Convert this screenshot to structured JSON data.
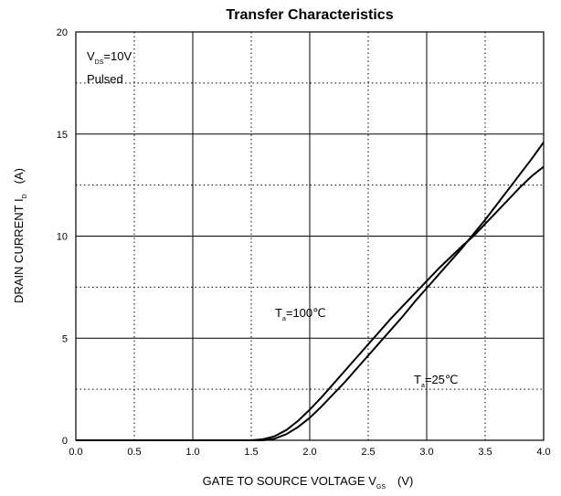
{
  "chart_data": {
    "type": "line",
    "title": "Transfer Characteristics",
    "xlabel": {
      "main": "GATE TO SOURCE VOLTAGE   V",
      "sub": "GS",
      "unit": "(V)"
    },
    "ylabel": {
      "main": "DRAIN CURRENT   I",
      "sub": "D",
      "unit": "(A)"
    },
    "xlim": [
      0,
      4
    ],
    "ylim": [
      0,
      20
    ],
    "x_ticks": [
      "0.0",
      "0.5",
      "1.0",
      "1.5",
      "2.0",
      "2.5",
      "3.0",
      "3.5",
      "4.0"
    ],
    "y_ticks": [
      "0",
      "5",
      "10",
      "15",
      "20"
    ],
    "grid": {
      "major": "solid",
      "minor": "dotted"
    },
    "conditions": {
      "line1": {
        "main": "V",
        "sub": "DS",
        "rest": "=10V"
      },
      "line2": "Pulsed"
    },
    "series": [
      {
        "label": {
          "main": "T",
          "sub": "a",
          "rest": "=100℃"
        },
        "x": [
          0.0,
          1.5,
          1.6,
          1.7,
          1.8,
          1.9,
          2.0,
          2.1,
          2.2,
          2.3,
          2.4,
          2.5,
          2.6,
          2.7,
          2.8,
          2.9,
          3.0,
          3.1,
          3.2,
          3.3,
          3.4,
          3.5,
          3.6,
          3.7,
          3.8,
          3.9,
          4.0
        ],
        "y": [
          0.0,
          0.0,
          0.05,
          0.2,
          0.5,
          0.95,
          1.5,
          2.1,
          2.75,
          3.4,
          4.05,
          4.7,
          5.35,
          6.0,
          6.6,
          7.2,
          7.8,
          8.4,
          8.95,
          9.5,
          10.0,
          10.6,
          11.2,
          11.8,
          12.4,
          12.95,
          13.4
        ]
      },
      {
        "label": {
          "main": "T",
          "sub": "a",
          "rest": "=25℃"
        },
        "x": [
          0.0,
          1.6,
          1.7,
          1.8,
          1.9,
          2.0,
          2.1,
          2.2,
          2.3,
          2.4,
          2.5,
          2.6,
          2.7,
          2.8,
          2.9,
          3.0,
          3.1,
          3.2,
          3.3,
          3.4,
          3.5,
          3.6,
          3.7,
          3.8,
          3.9,
          4.0
        ],
        "y": [
          0.0,
          0.0,
          0.08,
          0.3,
          0.65,
          1.1,
          1.65,
          2.25,
          2.85,
          3.5,
          4.15,
          4.8,
          5.45,
          6.1,
          6.8,
          7.45,
          8.1,
          8.75,
          9.4,
          10.1,
          10.8,
          11.55,
          12.3,
          13.05,
          13.8,
          14.6
        ]
      }
    ]
  }
}
